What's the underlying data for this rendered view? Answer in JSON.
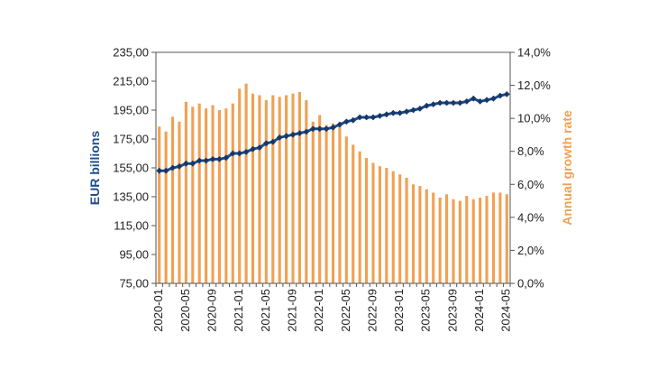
{
  "chart_data": {
    "type": "bar+line",
    "x": [
      "2020-01",
      "2020-02",
      "2020-03",
      "2020-04",
      "2020-05",
      "2020-06",
      "2020-07",
      "2020-08",
      "2020-09",
      "2020-10",
      "2020-11",
      "2020-12",
      "2021-01",
      "2021-02",
      "2021-03",
      "2021-04",
      "2021-05",
      "2021-06",
      "2021-07",
      "2021-08",
      "2021-09",
      "2021-10",
      "2021-11",
      "2021-12",
      "2022-01",
      "2022-02",
      "2022-03",
      "2022-04",
      "2022-05",
      "2022-06",
      "2022-07",
      "2022-08",
      "2022-09",
      "2022-10",
      "2022-11",
      "2022-12",
      "2023-01",
      "2023-02",
      "2023-03",
      "2023-04",
      "2023-05",
      "2023-06",
      "2023-07",
      "2023-08",
      "2023-09",
      "2023-10",
      "2023-11",
      "2023-12",
      "2024-01",
      "2024-02",
      "2024-03",
      "2024-04",
      "2024-05"
    ],
    "x_tick_labels": [
      "2020-01",
      "2020-05",
      "2020-09",
      "2021-01",
      "2021-05",
      "2021-09",
      "2022-01",
      "2022-05",
      "2022-09",
      "2023-01",
      "2023-05",
      "2023-09",
      "2024-01",
      "2024-05"
    ],
    "series": [
      {
        "axis": "left",
        "kind": "line",
        "color": "#1f4e8c",
        "values": [
          153,
          153,
          155,
          156,
          158,
          158,
          160,
          160,
          161,
          161,
          162,
          165,
          165,
          166,
          168,
          169,
          172,
          173,
          176,
          177,
          178,
          179,
          180,
          182,
          182,
          182,
          183,
          185,
          187,
          188,
          190,
          190,
          190,
          191,
          192,
          193,
          193,
          194,
          195,
          196,
          198,
          199,
          200,
          200,
          200,
          200,
          201,
          203,
          201,
          202,
          203,
          205,
          206
        ]
      },
      {
        "axis": "right",
        "kind": "bar",
        "color": "#f0a154",
        "values": [
          9.5,
          9.2,
          10.1,
          9.8,
          11.0,
          10.7,
          10.9,
          10.6,
          10.8,
          10.5,
          10.6,
          10.9,
          11.8,
          12.1,
          11.5,
          11.4,
          11.1,
          11.4,
          11.3,
          11.4,
          11.5,
          11.6,
          11.1,
          9.8,
          10.2,
          9.6,
          9.7,
          9.6,
          8.9,
          8.4,
          8.0,
          7.6,
          7.3,
          7.1,
          7.0,
          6.8,
          6.6,
          6.4,
          6.0,
          5.9,
          5.7,
          5.5,
          5.2,
          5.4,
          5.1,
          5.0,
          5.3,
          5.1,
          5.2,
          5.3,
          5.5,
          5.5,
          5.4
        ]
      }
    ],
    "ylabel": "EUR billions",
    "y2label": "Annual growth rate",
    "ylim": [
      75,
      235
    ],
    "yticks": [
      "75,00",
      "95,00",
      "115,00",
      "135,00",
      "155,00",
      "175,00",
      "195,00",
      "215,00",
      "235,00"
    ],
    "y2lim": [
      0,
      14
    ],
    "y2ticks": [
      "0,0%",
      "2,0%",
      "4,0%",
      "6,0%",
      "8,0%",
      "10,0%",
      "12,0%",
      "14,0%"
    ],
    "grid": false,
    "colors": {
      "line": "#1f4e8c",
      "bar": "#f0a154",
      "axis_left_title": "#1f4e8c",
      "axis_right_title": "#f0a154"
    }
  }
}
